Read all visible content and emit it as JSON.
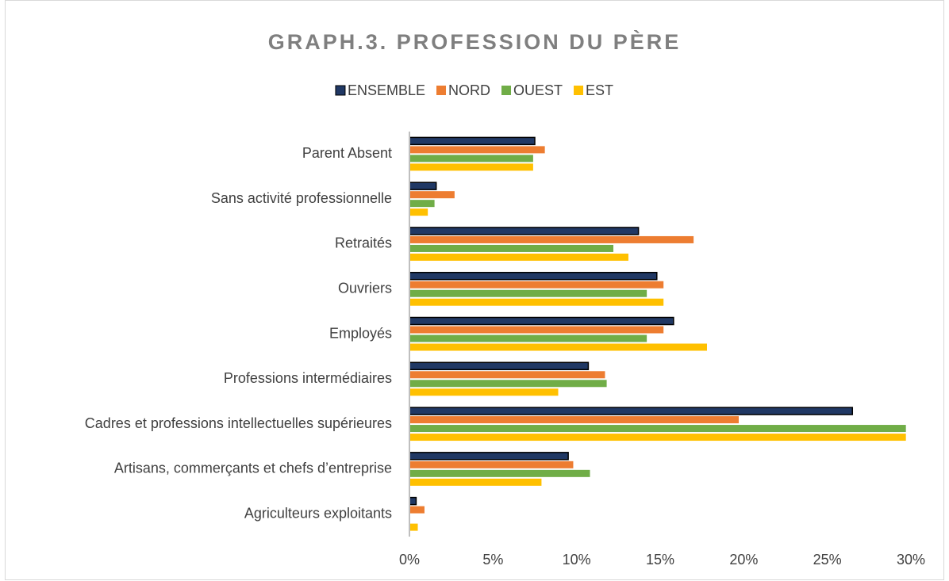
{
  "chart_data": {
    "type": "barh",
    "title": "GRAPH.3. PROFESSION DU PÈRE",
    "categories": [
      "Parent Absent",
      "Sans activité professionnelle",
      "Retraités",
      "Ouvriers",
      "Employés ",
      "Professions intermédiaires",
      "Cadres et professions intellectuelles supérieures",
      "Artisans, commerçants et chefs d’entreprise",
      "Agriculteurs exploitants"
    ],
    "series": [
      {
        "name": "ENSEMBLE",
        "color": "#203864",
        "values": [
          7.5,
          1.6,
          13.7,
          14.8,
          15.8,
          10.7,
          26.5,
          9.5,
          0.4
        ]
      },
      {
        "name": "NORD",
        "color": "#ED7D31",
        "values": [
          8.1,
          2.7,
          17.0,
          15.2,
          15.2,
          11.7,
          19.7,
          9.8,
          0.9
        ]
      },
      {
        "name": "OUEST",
        "color": "#70AD47",
        "values": [
          7.4,
          1.5,
          12.2,
          14.2,
          14.2,
          11.8,
          29.7,
          10.8,
          0
        ]
      },
      {
        "name": "EST",
        "color": "#FFC000",
        "values": [
          7.4,
          1.1,
          13.1,
          15.2,
          17.8,
          8.9,
          29.7,
          7.9,
          0.5
        ]
      }
    ],
    "xlim": [
      0,
      30
    ],
    "xticks": [
      {
        "value": 0,
        "label": "0%"
      },
      {
        "value": 5,
        "label": "5%"
      },
      {
        "value": 10,
        "label": "10%"
      },
      {
        "value": 15,
        "label": "15%"
      },
      {
        "value": 20,
        "label": "20%"
      },
      {
        "value": 25,
        "label": "25%"
      },
      {
        "value": 30,
        "label": "30%"
      }
    ],
    "legend": "top"
  }
}
